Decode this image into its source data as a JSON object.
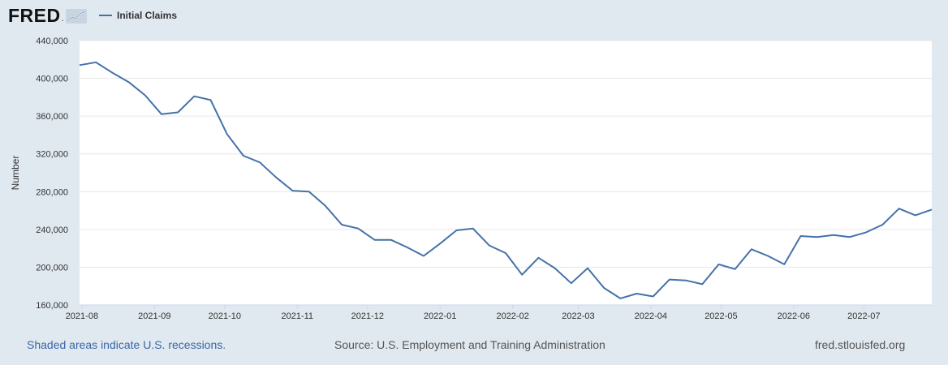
{
  "logo": {
    "text": "FRED",
    "dot": "."
  },
  "chart_data": {
    "type": "line",
    "title": "",
    "xlabel": "",
    "ylabel": "Number",
    "ylim": [
      160000,
      440000
    ],
    "yticks": [
      160000,
      200000,
      240000,
      280000,
      320000,
      360000,
      400000,
      440000
    ],
    "ytick_labels": [
      "160,000",
      "200,000",
      "240,000",
      "280,000",
      "320,000",
      "360,000",
      "400,000",
      "440,000"
    ],
    "xlim": [
      "2021-07-31",
      "2022-07-30"
    ],
    "xticks": [
      "2021-08-01",
      "2021-09-01",
      "2021-10-01",
      "2021-11-01",
      "2021-12-01",
      "2022-01-01",
      "2022-02-01",
      "2022-03-01",
      "2022-04-01",
      "2022-05-01",
      "2022-06-01",
      "2022-07-01"
    ],
    "xtick_labels": [
      "2021-08",
      "2021-09",
      "2021-10",
      "2021-11",
      "2021-12",
      "2022-01",
      "2022-02",
      "2022-03",
      "2022-04",
      "2022-05",
      "2022-06",
      "2022-07"
    ],
    "grid": true,
    "legend_position": "top-left",
    "series": [
      {
        "name": "Initial Claims",
        "color": "#4572a7",
        "x": [
          "2021-07-31",
          "2021-08-07",
          "2021-08-14",
          "2021-08-21",
          "2021-08-28",
          "2021-09-04",
          "2021-09-11",
          "2021-09-18",
          "2021-09-25",
          "2021-10-02",
          "2021-10-09",
          "2021-10-16",
          "2021-10-23",
          "2021-10-30",
          "2021-11-06",
          "2021-11-13",
          "2021-11-20",
          "2021-11-27",
          "2021-12-04",
          "2021-12-11",
          "2021-12-18",
          "2021-12-25",
          "2022-01-01",
          "2022-01-08",
          "2022-01-15",
          "2022-01-22",
          "2022-01-29",
          "2022-02-05",
          "2022-02-12",
          "2022-02-19",
          "2022-02-26",
          "2022-03-05",
          "2022-03-12",
          "2022-03-19",
          "2022-03-26",
          "2022-04-02",
          "2022-04-09",
          "2022-04-16",
          "2022-04-23",
          "2022-04-30",
          "2022-05-07",
          "2022-05-14",
          "2022-05-21",
          "2022-05-28",
          "2022-06-04",
          "2022-06-11",
          "2022-06-18",
          "2022-06-25",
          "2022-07-02",
          "2022-07-09",
          "2022-07-16",
          "2022-07-23",
          "2022-07-30"
        ],
        "values": [
          414000,
          417000,
          406000,
          396000,
          382000,
          362000,
          364000,
          381000,
          377000,
          341000,
          318000,
          311000,
          295000,
          281000,
          280000,
          265000,
          245000,
          241000,
          229000,
          229000,
          221000,
          212000,
          225000,
          239000,
          241000,
          223000,
          215000,
          192000,
          210000,
          199000,
          183000,
          199000,
          178000,
          167000,
          172000,
          169000,
          187000,
          186000,
          182000,
          203000,
          198000,
          219000,
          212000,
          203000,
          233000,
          232000,
          234000,
          232000,
          237000,
          245000,
          262000,
          255000,
          261000
        ]
      }
    ]
  },
  "footer": {
    "recession_note": "Shaded areas indicate U.S. recessions.",
    "source": "Source: U.S. Employment and Training Administration",
    "url": "fred.stlouisfed.org"
  }
}
